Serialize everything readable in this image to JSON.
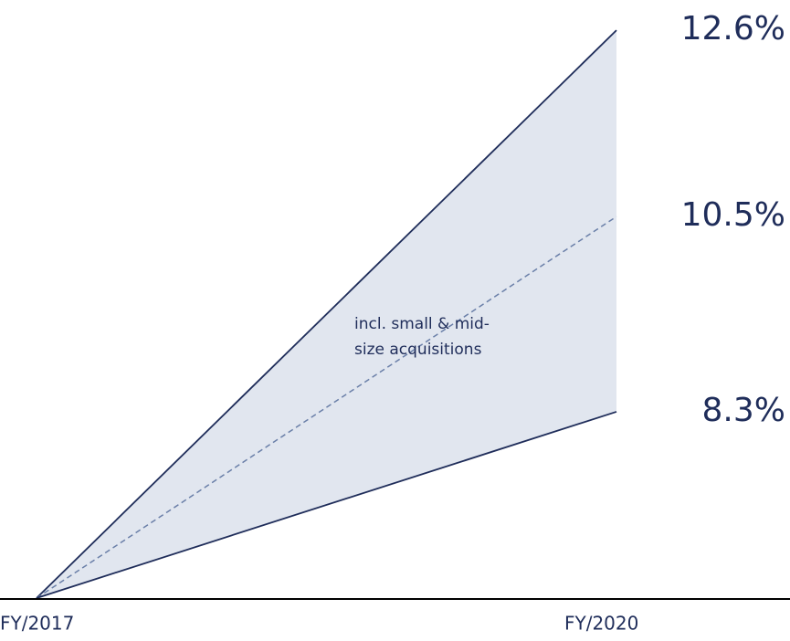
{
  "chart_data": {
    "type": "fan",
    "categories": [
      "FY/2017",
      "FY/2020"
    ],
    "series": [
      {
        "value": 12.6,
        "value_label": "12.6%",
        "color": "#1f2d5a",
        "dashed": false
      },
      {
        "value": 10.5,
        "value_label": "10.5%",
        "color": "#6a7fa8",
        "dashed": true
      },
      {
        "value": 8.3,
        "value_label": "8.3%",
        "color": "#1f2d5a",
        "dashed": false
      }
    ],
    "fill_color": "#e1e6ef",
    "ylim": [
      6.2,
      12.9
    ],
    "annotation": [
      "incl. small & mid-",
      "size acquisitions"
    ]
  }
}
